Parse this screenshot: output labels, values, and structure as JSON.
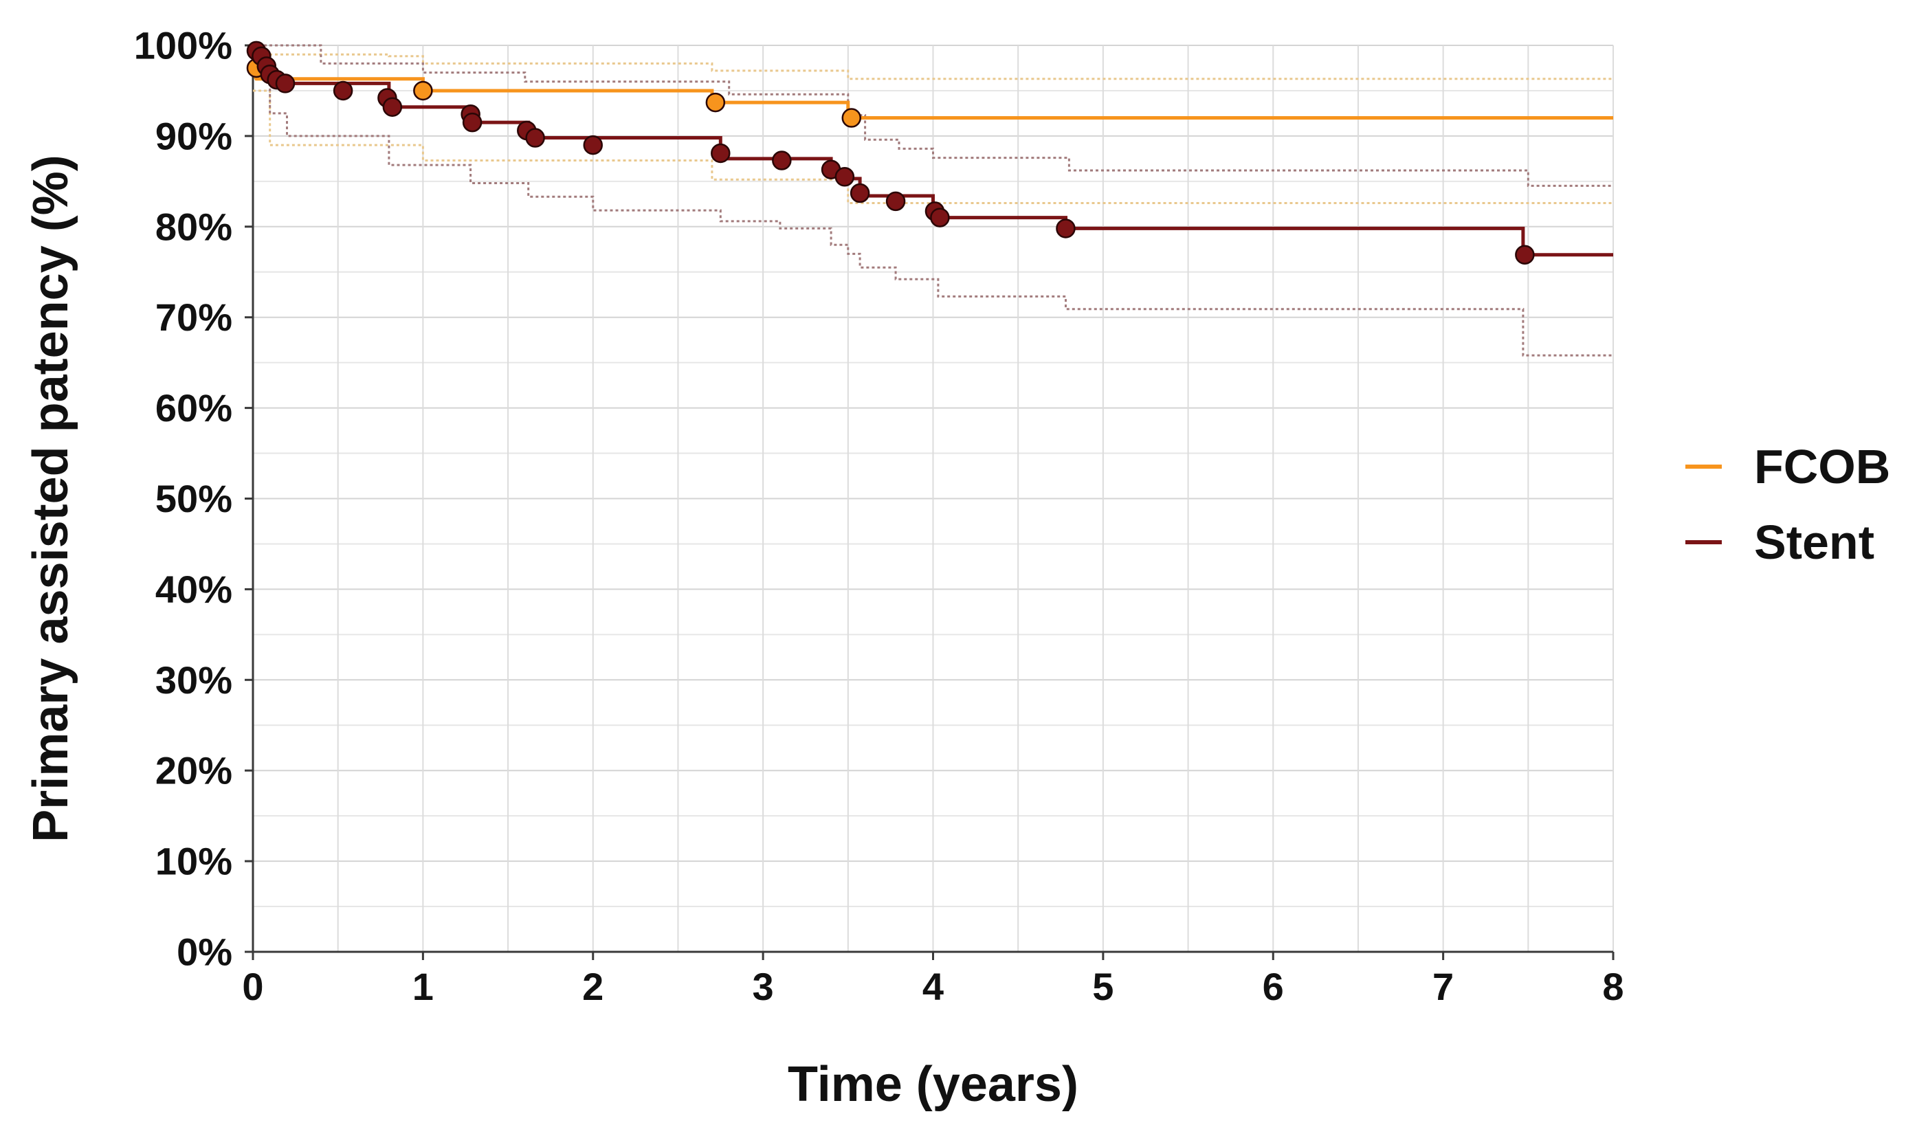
{
  "chart_data": {
    "type": "line",
    "subtype": "kaplan-meier step curve with censor markers and dotted confidence bands",
    "title": "",
    "xlabel": "Time (years)",
    "ylabel": "Primary assisted patency (%)",
    "xlim": [
      0,
      8
    ],
    "ylim": [
      0,
      100
    ],
    "x_ticks": [
      "0",
      "1",
      "2",
      "3",
      "4",
      "5",
      "6",
      "7",
      "8"
    ],
    "y_ticks": [
      "0%",
      "10%",
      "20%",
      "30%",
      "40%",
      "50%",
      "60%",
      "70%",
      "80%",
      "90%",
      "100%"
    ],
    "x_minor_step": 0.5,
    "y_minor_step": 5,
    "grid": true,
    "legend_position": "right",
    "series": [
      {
        "name": "FCOB",
        "color": "#F7941D",
        "steps": [
          [
            0,
            97
          ],
          [
            0.02,
            96.3
          ],
          [
            1.0,
            96.3
          ],
          [
            1.0,
            95
          ],
          [
            2.7,
            95
          ],
          [
            2.7,
            93.7
          ],
          [
            3.5,
            93.7
          ],
          [
            3.5,
            92
          ],
          [
            8,
            92
          ]
        ],
        "censored": [
          [
            0.02,
            97.5
          ],
          [
            1.0,
            95
          ],
          [
            2.72,
            93.7
          ],
          [
            3.52,
            92
          ]
        ],
        "ci_upper": [
          [
            0,
            99
          ],
          [
            0.8,
            99
          ],
          [
            0.8,
            98.8
          ],
          [
            1.0,
            98.8
          ],
          [
            1.0,
            98
          ],
          [
            2.7,
            98
          ],
          [
            2.7,
            97.2
          ],
          [
            3.5,
            97.2
          ],
          [
            3.5,
            96.3
          ],
          [
            8,
            96.3
          ]
        ],
        "ci_lower": [
          [
            0,
            95
          ],
          [
            0.1,
            95
          ],
          [
            0.1,
            89
          ],
          [
            1.0,
            89
          ],
          [
            1.0,
            87.3
          ],
          [
            2.7,
            87.3
          ],
          [
            2.7,
            85.2
          ],
          [
            3.5,
            85.2
          ],
          [
            3.5,
            82.6
          ],
          [
            8,
            82.6
          ]
        ]
      },
      {
        "name": "Stent",
        "color": "#7B1416",
        "steps": [
          [
            0,
            99.3
          ],
          [
            0.03,
            99.3
          ],
          [
            0.03,
            98.6
          ],
          [
            0.07,
            98.6
          ],
          [
            0.07,
            97.5
          ],
          [
            0.1,
            97.5
          ],
          [
            0.1,
            96.5
          ],
          [
            0.15,
            96.5
          ],
          [
            0.15,
            95.8
          ],
          [
            0.8,
            95.8
          ],
          [
            0.8,
            93.2
          ],
          [
            1.28,
            93.2
          ],
          [
            1.28,
            91.5
          ],
          [
            1.62,
            91.5
          ],
          [
            1.62,
            89.8
          ],
          [
            2.75,
            89.8
          ],
          [
            2.75,
            87.5
          ],
          [
            3.4,
            87.5
          ],
          [
            3.4,
            86
          ],
          [
            3.5,
            86
          ],
          [
            3.5,
            85.3
          ],
          [
            3.57,
            85.3
          ],
          [
            3.57,
            83.4
          ],
          [
            4.0,
            83.4
          ],
          [
            4.0,
            82
          ],
          [
            4.03,
            82
          ],
          [
            4.03,
            81
          ],
          [
            4.78,
            81
          ],
          [
            4.78,
            79.8
          ],
          [
            7.47,
            79.8
          ],
          [
            7.47,
            76.9
          ],
          [
            8,
            76.9
          ]
        ],
        "censored": [
          [
            0.02,
            99.4
          ],
          [
            0.05,
            98.8
          ],
          [
            0.08,
            97.7
          ],
          [
            0.1,
            96.8
          ],
          [
            0.14,
            96.2
          ],
          [
            0.19,
            95.8
          ],
          [
            0.53,
            95
          ],
          [
            0.79,
            94.2
          ],
          [
            0.82,
            93.2
          ],
          [
            1.28,
            92.4
          ],
          [
            1.29,
            91.5
          ],
          [
            1.61,
            90.6
          ],
          [
            1.66,
            89.8
          ],
          [
            2.0,
            89
          ],
          [
            2.75,
            88.1
          ],
          [
            3.11,
            87.3
          ],
          [
            3.4,
            86.3
          ],
          [
            3.48,
            85.5
          ],
          [
            3.57,
            83.7
          ],
          [
            3.78,
            82.8
          ],
          [
            4.01,
            81.7
          ],
          [
            4.04,
            81
          ],
          [
            4.78,
            79.8
          ],
          [
            7.48,
            76.9
          ]
        ],
        "ci_upper": [
          [
            0,
            100
          ],
          [
            0.4,
            100
          ],
          [
            0.4,
            98
          ],
          [
            1.0,
            98
          ],
          [
            1.0,
            97
          ],
          [
            1.6,
            97
          ],
          [
            1.6,
            96
          ],
          [
            2.8,
            96
          ],
          [
            2.8,
            94.6
          ],
          [
            3.5,
            94.6
          ],
          [
            3.5,
            92.3
          ],
          [
            3.6,
            92.3
          ],
          [
            3.6,
            89.6
          ],
          [
            3.8,
            89.6
          ],
          [
            3.8,
            88.6
          ],
          [
            4.0,
            88.6
          ],
          [
            4.0,
            87.6
          ],
          [
            4.8,
            87.6
          ],
          [
            4.8,
            86.2
          ],
          [
            7.5,
            86.2
          ],
          [
            7.5,
            84.5
          ],
          [
            8,
            84.5
          ]
        ],
        "ci_lower": [
          [
            0,
            97
          ],
          [
            0.1,
            97
          ],
          [
            0.1,
            92.5
          ],
          [
            0.2,
            92.5
          ],
          [
            0.2,
            90
          ],
          [
            0.8,
            90
          ],
          [
            0.8,
            86.8
          ],
          [
            1.28,
            86.8
          ],
          [
            1.28,
            84.8
          ],
          [
            1.62,
            84.8
          ],
          [
            1.62,
            83.3
          ],
          [
            2.0,
            83.3
          ],
          [
            2.0,
            81.8
          ],
          [
            2.75,
            81.8
          ],
          [
            2.75,
            80.6
          ],
          [
            3.1,
            80.6
          ],
          [
            3.1,
            79.8
          ],
          [
            3.4,
            79.8
          ],
          [
            3.4,
            78
          ],
          [
            3.5,
            78
          ],
          [
            3.5,
            77
          ],
          [
            3.57,
            77
          ],
          [
            3.57,
            75.5
          ],
          [
            3.78,
            75.5
          ],
          [
            3.78,
            74.2
          ],
          [
            4.03,
            74.2
          ],
          [
            4.03,
            72.3
          ],
          [
            4.78,
            72.3
          ],
          [
            4.78,
            70.9
          ],
          [
            7.47,
            70.9
          ],
          [
            7.47,
            65.8
          ],
          [
            8,
            65.8
          ]
        ]
      }
    ]
  }
}
